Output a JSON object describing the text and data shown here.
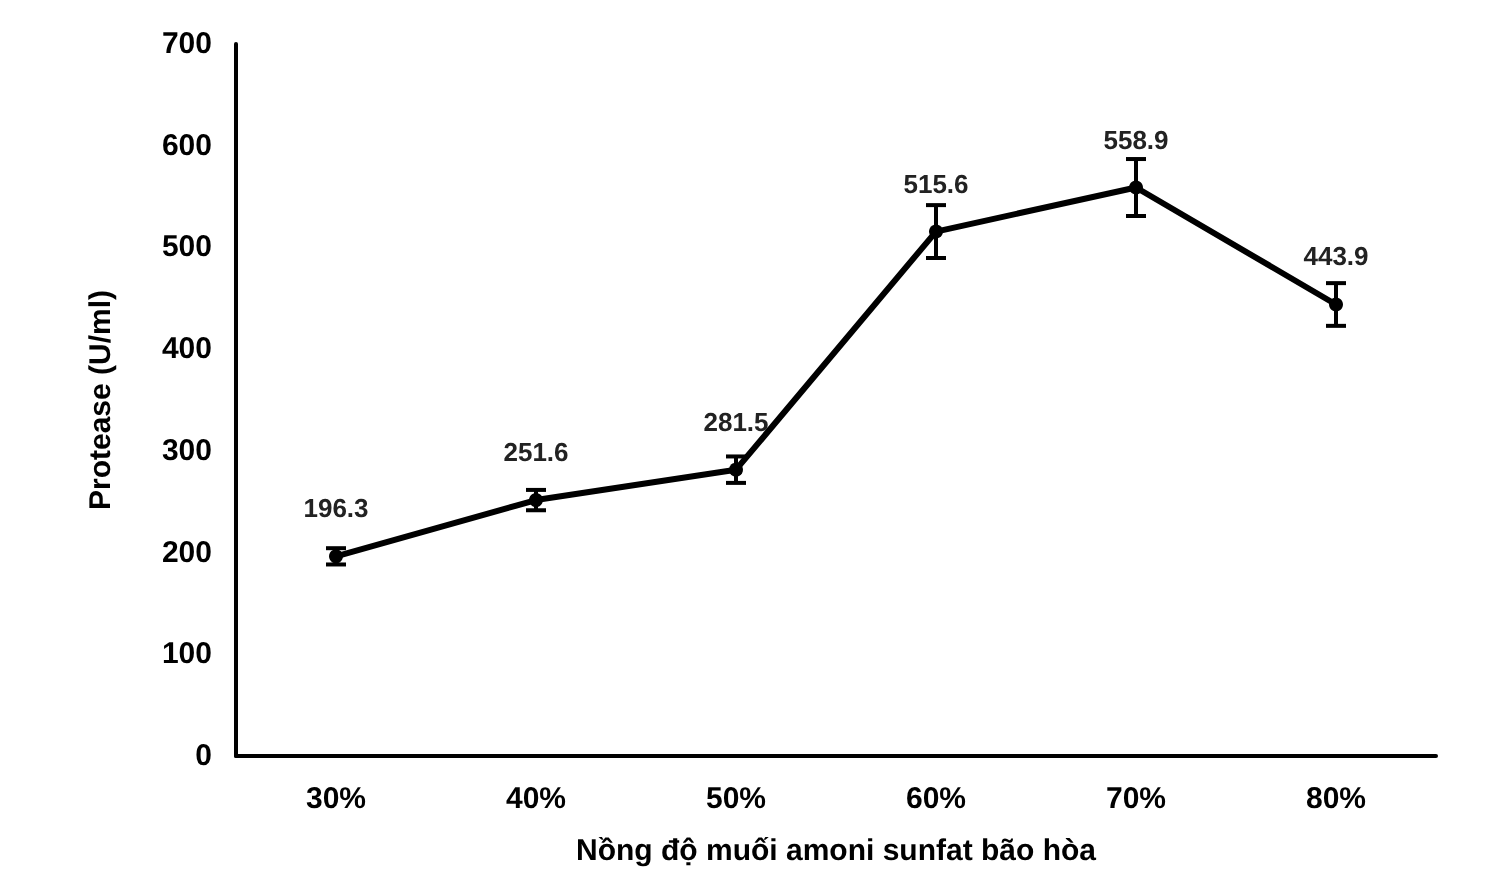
{
  "chart_data": {
    "type": "line",
    "xlabel": "Nồng độ muối amoni sunfat bão hòa",
    "ylabel": "Protease (U/ml)",
    "categories": [
      "30%",
      "40%",
      "50%",
      "60%",
      "70%",
      "80%"
    ],
    "series": [
      {
        "color": "#000000",
        "values": [
          196.3,
          251.6,
          281.5,
          515.6,
          558.9,
          443.9
        ],
        "errors": [
          8,
          10,
          13,
          26,
          28,
          21
        ]
      }
    ],
    "ylim": [
      0,
      700
    ],
    "yticks": [
      0,
      100,
      200,
      300,
      400,
      500,
      600,
      700
    ],
    "grid": false,
    "marker": "circle",
    "line_style": "solid",
    "data_labels": true
  }
}
